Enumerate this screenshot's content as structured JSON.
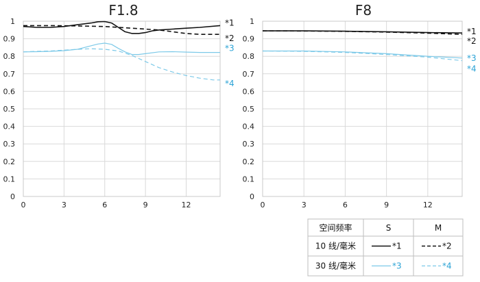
{
  "chart_data": [
    {
      "type": "line",
      "title": "F1.8",
      "xlim": [
        0,
        14.5
      ],
      "ylim": [
        0,
        1
      ],
      "xticks": [
        0,
        3,
        6,
        9,
        12
      ],
      "yticks": [
        0,
        0.1,
        0.2,
        0.3,
        0.4,
        0.5,
        0.6,
        0.7,
        0.8,
        0.9,
        1
      ],
      "ytick_labels": [
        "0",
        "0.1",
        "0.2",
        "0.3",
        "0.4",
        "0.5",
        "0.6",
        "0.7",
        "0.8",
        "0.9",
        "1"
      ],
      "grid": true,
      "series": [
        {
          "name": "*1",
          "color": "#111111",
          "dash": "solid",
          "x": [
            0,
            1,
            2,
            3,
            4,
            5,
            5.5,
            6,
            6.5,
            7,
            7.5,
            8,
            8.5,
            9,
            9.5,
            10,
            11,
            12,
            13,
            14.5
          ],
          "y": [
            0.97,
            0.965,
            0.965,
            0.97,
            0.98,
            0.99,
            0.997,
            0.998,
            0.99,
            0.965,
            0.94,
            0.93,
            0.93,
            0.935,
            0.945,
            0.95,
            0.955,
            0.96,
            0.965,
            0.975
          ]
        },
        {
          "name": "*2",
          "color": "#111111",
          "dash": "dashed",
          "x": [
            0,
            2,
            4,
            6,
            7,
            8,
            9,
            10,
            11,
            12,
            13,
            14.5
          ],
          "y": [
            0.975,
            0.975,
            0.973,
            0.97,
            0.965,
            0.96,
            0.955,
            0.95,
            0.94,
            0.93,
            0.925,
            0.925
          ]
        },
        {
          "name": "*3",
          "color": "#7cc9e8",
          "dash": "solid",
          "x": [
            0,
            1,
            2,
            3,
            4,
            5,
            5.5,
            6,
            6.5,
            7,
            7.5,
            8,
            8.5,
            9,
            10,
            11,
            12,
            13,
            14.5
          ],
          "y": [
            0.825,
            0.826,
            0.828,
            0.832,
            0.84,
            0.86,
            0.87,
            0.875,
            0.868,
            0.845,
            0.825,
            0.81,
            0.81,
            0.815,
            0.825,
            0.826,
            0.824,
            0.822,
            0.822
          ]
        },
        {
          "name": "*4",
          "color": "#7cc9e8",
          "dash": "dashed",
          "x": [
            0,
            1,
            2,
            3,
            4,
            5,
            6,
            7,
            8,
            9,
            10,
            11,
            12,
            13,
            14,
            14.5
          ],
          "y": [
            0.825,
            0.828,
            0.83,
            0.835,
            0.84,
            0.843,
            0.84,
            0.83,
            0.805,
            0.77,
            0.735,
            0.71,
            0.69,
            0.675,
            0.665,
            0.665
          ]
        }
      ]
    },
    {
      "type": "line",
      "title": "F8",
      "xlim": [
        0,
        14.5
      ],
      "ylim": [
        0,
        1
      ],
      "xticks": [
        0,
        3,
        6,
        9,
        12
      ],
      "yticks": [
        0,
        0.1,
        0.2,
        0.3,
        0.4,
        0.5,
        0.6,
        0.7,
        0.8,
        0.9,
        1
      ],
      "ytick_labels": [
        "0",
        "0.1",
        "0.2",
        "0.3",
        "0.4",
        "0.5",
        "0.6",
        "0.7",
        "0.8",
        "0.9",
        "1"
      ],
      "grid": true,
      "series": [
        {
          "name": "*1",
          "color": "#111111",
          "dash": "solid",
          "x": [
            0,
            3,
            6,
            9,
            12,
            14.5
          ],
          "y": [
            0.945,
            0.945,
            0.943,
            0.94,
            0.935,
            0.933
          ]
        },
        {
          "name": "*2",
          "color": "#111111",
          "dash": "dashed",
          "x": [
            0,
            3,
            6,
            9,
            12,
            14.5
          ],
          "y": [
            0.945,
            0.944,
            0.942,
            0.938,
            0.932,
            0.925
          ]
        },
        {
          "name": "*3",
          "color": "#7cc9e8",
          "dash": "solid",
          "x": [
            0,
            3,
            6,
            9,
            12,
            14.5
          ],
          "y": [
            0.83,
            0.83,
            0.825,
            0.815,
            0.8,
            0.79
          ]
        },
        {
          "name": "*4",
          "color": "#7cc9e8",
          "dash": "dashed",
          "x": [
            0,
            3,
            6,
            9,
            12,
            14.5
          ],
          "y": [
            0.83,
            0.828,
            0.822,
            0.81,
            0.795,
            0.775
          ]
        }
      ]
    }
  ],
  "legend_table": {
    "header": [
      "空间频率",
      "S",
      "M"
    ],
    "rows": [
      {
        "label": "10 线/毫米",
        "s_name": "*1",
        "m_name": "*2",
        "color": "#111111"
      },
      {
        "label": "30 线/毫米",
        "s_name": "*3",
        "m_name": "*4",
        "color": "#7cc9e8"
      }
    ],
    "label_colors": {
      "black": "#111111",
      "blue": "#2ba3d6"
    }
  }
}
